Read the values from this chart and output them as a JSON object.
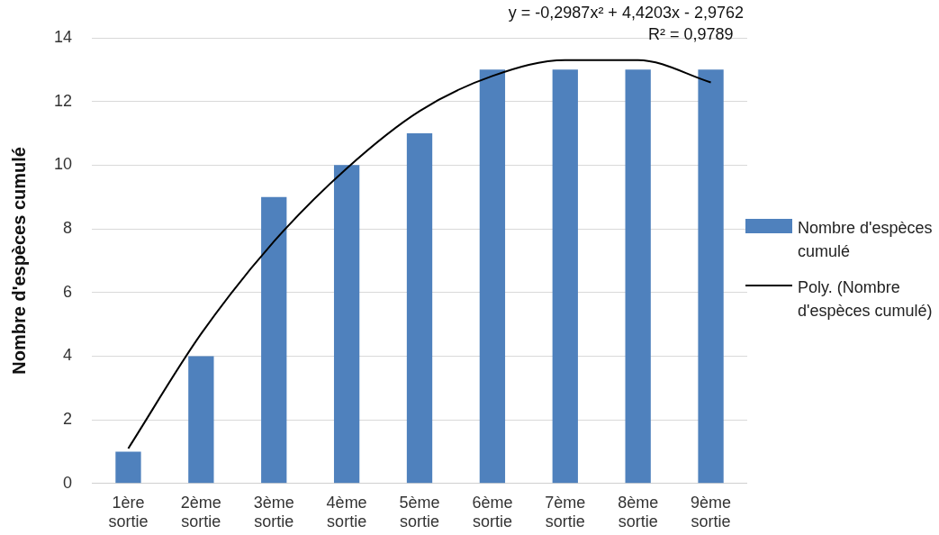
{
  "chart_data": {
    "type": "bar",
    "ylabel": "Nombre d'espèces cumulé",
    "categories": [
      "1ère sortie",
      "2ème sortie",
      "3ème sortie",
      "4ème sortie",
      "5ème sortie",
      "6ème sortie",
      "7ème sortie",
      "8ème sortie",
      "9ème sortie"
    ],
    "series": [
      {
        "name": "Nombre d'espèces cumulé",
        "color": "#4f81bd",
        "values": [
          1,
          4,
          9,
          10,
          11,
          13,
          13,
          13,
          13
        ]
      },
      {
        "name": "Poly. (Nombre d'espèces cumulé)",
        "type": "line",
        "color": "#000000",
        "values": [
          1.1,
          4.7,
          7.6,
          9.9,
          11.7,
          12.8,
          13.3,
          13.3,
          12.6
        ]
      }
    ],
    "ylim": [
      0,
      14
    ],
    "yticks": [
      0,
      2,
      4,
      6,
      8,
      10,
      12,
      14
    ],
    "grid": "y",
    "legend": "right",
    "marker": "none",
    "annotations": [
      "y = -0,2987x² + 4,4203x - 2,9762",
      "R² = 0,9789"
    ]
  }
}
